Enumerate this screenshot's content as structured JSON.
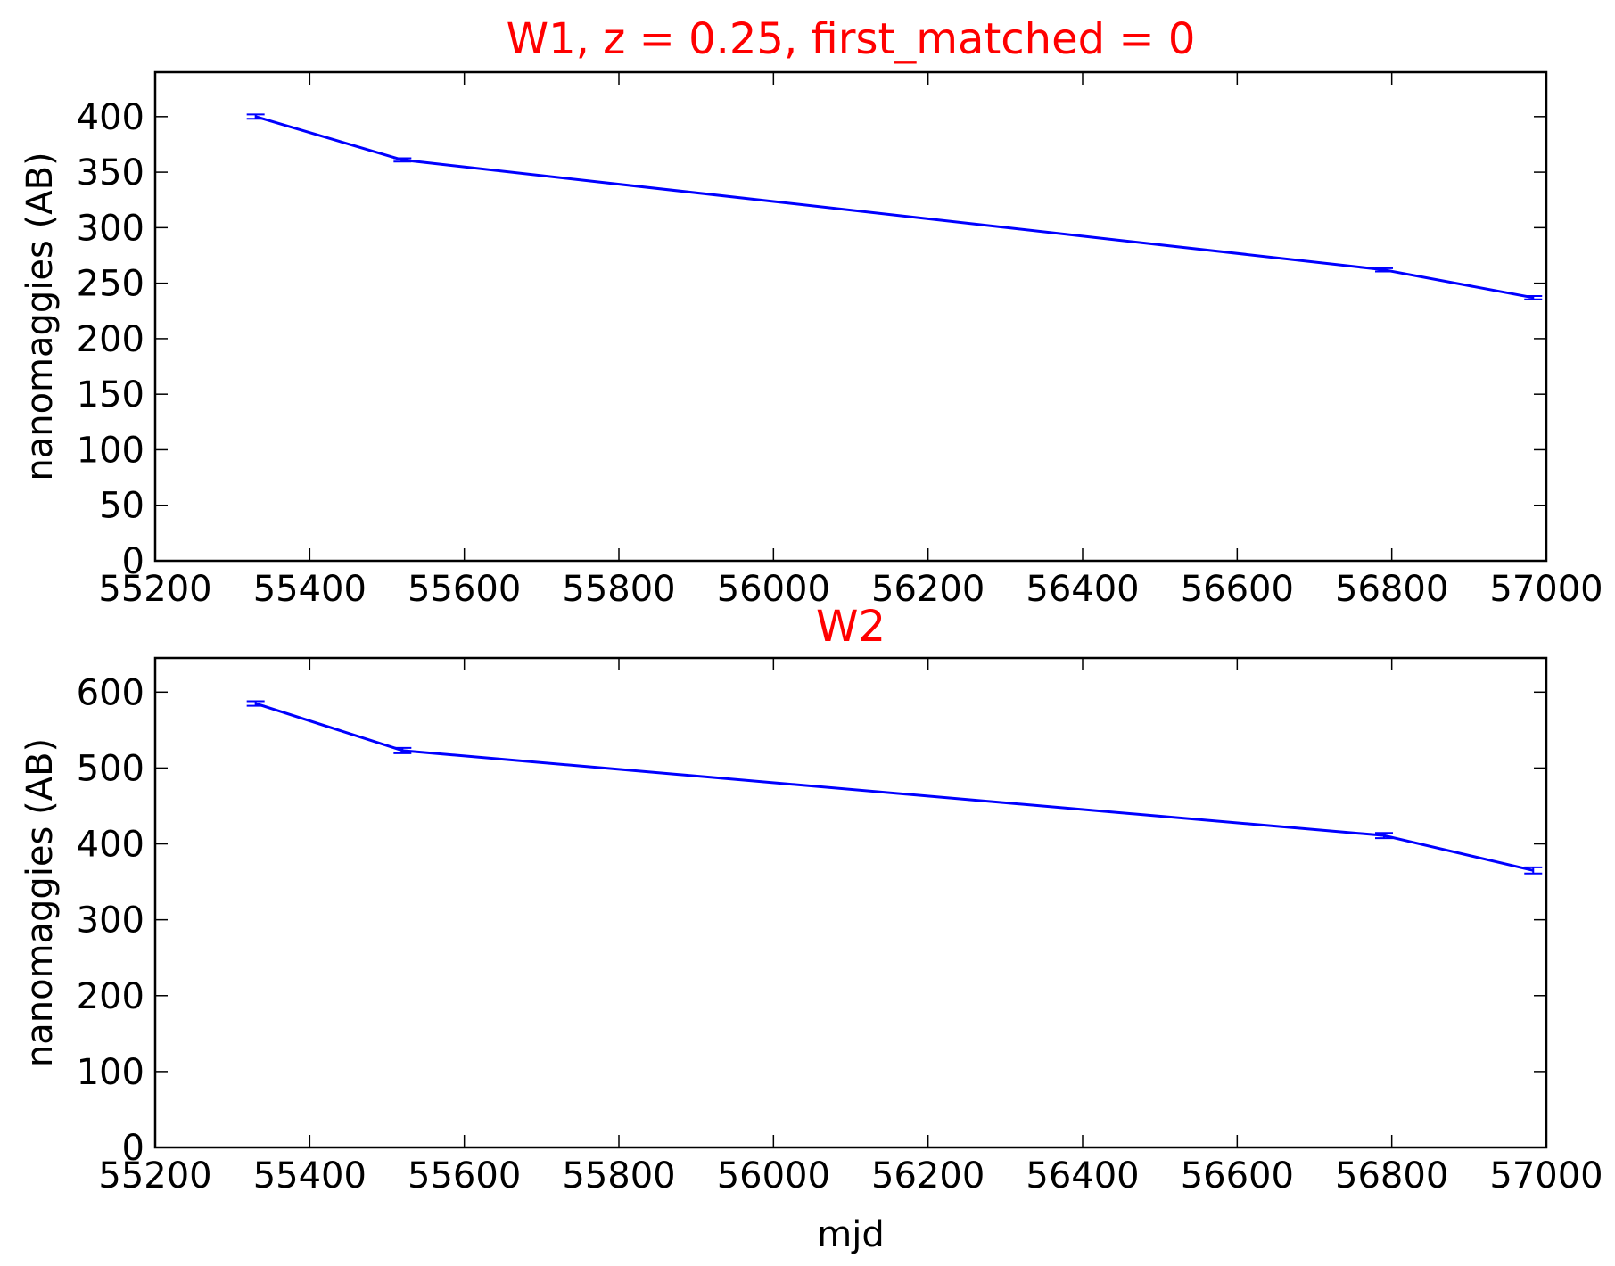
{
  "chart_data": [
    {
      "type": "line",
      "title": "W1, z = 0.25, first_matched = 0",
      "title_color": "#ff0000",
      "xlabel": "",
      "ylabel": "nanomaggies (AB)",
      "xlim": [
        55200,
        57000
      ],
      "ylim": [
        0,
        440
      ],
      "xticks": [
        55200,
        55400,
        55600,
        55800,
        56000,
        56200,
        56400,
        56600,
        56800,
        57000
      ],
      "yticks": [
        0,
        50,
        100,
        150,
        200,
        250,
        300,
        350,
        400
      ],
      "grid": false,
      "series": [
        {
          "color": "#0000ff",
          "x": [
            55330,
            55520,
            56790,
            56983
          ],
          "y": [
            400,
            361,
            262,
            237
          ],
          "yerr": [
            2,
            1.5,
            1.5,
            1.5
          ]
        }
      ]
    },
    {
      "type": "line",
      "title": "W2",
      "title_color": "#ff0000",
      "xlabel": "mjd",
      "ylabel": "nanomaggies (AB)",
      "xlim": [
        55200,
        57000
      ],
      "ylim": [
        0,
        645
      ],
      "xticks": [
        55200,
        55400,
        55600,
        55800,
        56000,
        56200,
        56400,
        56600,
        56800,
        57000
      ],
      "yticks": [
        0,
        100,
        200,
        300,
        400,
        500,
        600
      ],
      "grid": false,
      "series": [
        {
          "color": "#0000ff",
          "x": [
            55330,
            55520,
            56790,
            56983
          ],
          "y": [
            585,
            523,
            411,
            365
          ],
          "yerr": [
            3,
            3.5,
            3.5,
            4
          ]
        }
      ]
    }
  ]
}
